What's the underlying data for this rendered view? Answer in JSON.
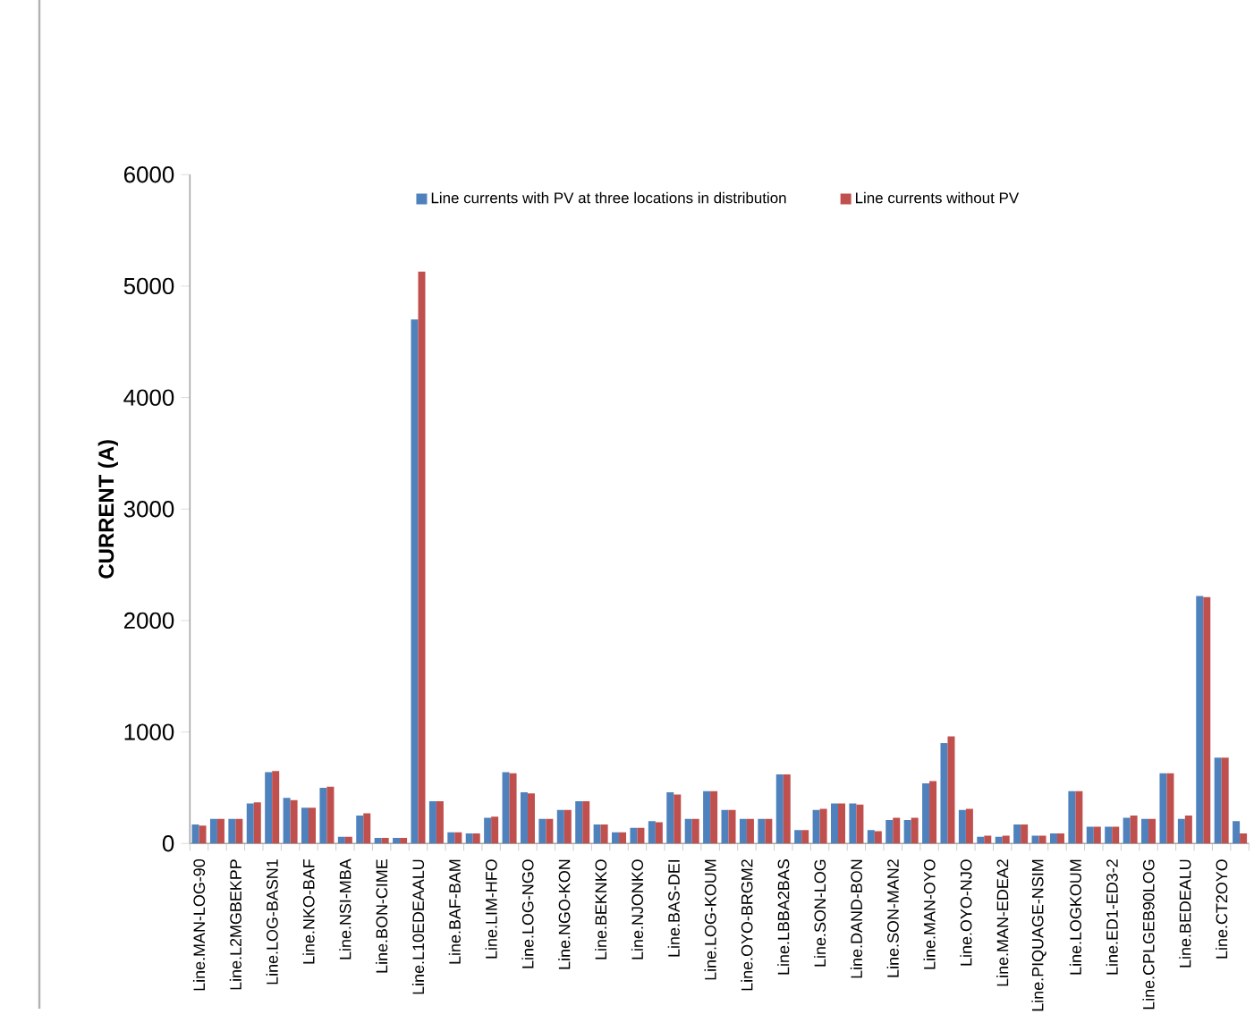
{
  "chart_data": {
    "type": "bar",
    "ylabel": "CURRENT (A)",
    "categories": [
      "Line.MAN-LOG-90",
      null,
      "Line.L2MGBEKPP",
      null,
      "Line.LOG-BASN1",
      null,
      "Line.NKO-BAF",
      null,
      "Line.NSI-MBA",
      null,
      "Line.BON-CIME",
      null,
      "Line.L10EDEAALU",
      null,
      "Line.BAF-BAM",
      null,
      "Line.LIM-HFO",
      null,
      "Line.LOG-NGO",
      null,
      "Line.NGO-KON",
      null,
      "Line.BEKNKO",
      null,
      "Line.NJONKO",
      null,
      "Line.BAS-DEI",
      null,
      "Line.LOG-KOUM",
      null,
      "Line.OYO-BRGM2",
      null,
      "Line.LBBA2BAS",
      null,
      "Line.SON-LOG",
      null,
      "Line.DAND-BON",
      null,
      "Line.SON-MAN2",
      null,
      "Line.MAN-OYO",
      null,
      "Line.OYO-NJO",
      null,
      "Line.MAN-EDEA2",
      null,
      "Line.PIQUAGE-NSIM",
      null,
      "Line.LOGKOUM",
      null,
      "Line.ED1-ED3-2",
      null,
      "Line.CPLGEB90LOG",
      null,
      "Line.BEDEALU",
      null,
      "Line.CT2OYO",
      null
    ],
    "series": [
      {
        "name": "Line currents with PV at three locations in distribution",
        "color": "#4f81bd",
        "values": [
          170,
          220,
          220,
          360,
          640,
          410,
          320,
          500,
          60,
          250,
          50,
          50,
          4700,
          380,
          100,
          90,
          230,
          640,
          460,
          220,
          300,
          380,
          170,
          100,
          140,
          200,
          460,
          220,
          470,
          300,
          220,
          220,
          620,
          120,
          300,
          360,
          360,
          120,
          210,
          210,
          540,
          900,
          300,
          60,
          60,
          170,
          70,
          90,
          470,
          150,
          150,
          230,
          220,
          630,
          220,
          2220,
          770,
          200
        ]
      },
      {
        "name": "Line currents without PV",
        "color": "#c0504d",
        "values": [
          160,
          220,
          220,
          370,
          650,
          390,
          320,
          510,
          60,
          270,
          50,
          50,
          5130,
          380,
          100,
          90,
          240,
          630,
          450,
          220,
          300,
          380,
          170,
          100,
          140,
          190,
          440,
          220,
          470,
          300,
          220,
          220,
          620,
          120,
          310,
          360,
          350,
          110,
          230,
          230,
          560,
          960,
          310,
          70,
          70,
          170,
          70,
          90,
          470,
          150,
          150,
          250,
          220,
          630,
          250,
          2210,
          770,
          90
        ]
      }
    ],
    "ylim": [
      0,
      6000
    ],
    "yticks": [
      0,
      1000,
      2000,
      3000,
      4000,
      5000,
      6000
    ],
    "legend": "top"
  }
}
